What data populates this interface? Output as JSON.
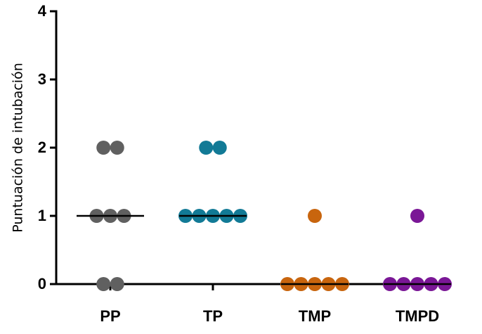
{
  "chart_data": {
    "type": "scatter",
    "y_label": "Puntuación de intubación",
    "series": [
      {
        "name": "PP",
        "color": "#606060",
        "values": [
          2,
          2,
          1,
          1,
          1,
          0,
          0
        ]
      },
      {
        "name": "TP",
        "color": "#127a96",
        "values": [
          2,
          2,
          1,
          1,
          1,
          1,
          1
        ]
      },
      {
        "name": "TMP",
        "color": "#c8650e",
        "values": [
          1,
          0,
          0,
          0,
          0,
          0
        ]
      },
      {
        "name": "TMPD",
        "color": "#7a1796",
        "values": [
          1,
          0,
          0,
          0,
          0,
          0
        ]
      }
    ],
    "medians": [
      1,
      1,
      0,
      0
    ],
    "ylim": [
      0,
      4
    ],
    "yticks": [
      0,
      1,
      2,
      3,
      4
    ]
  }
}
